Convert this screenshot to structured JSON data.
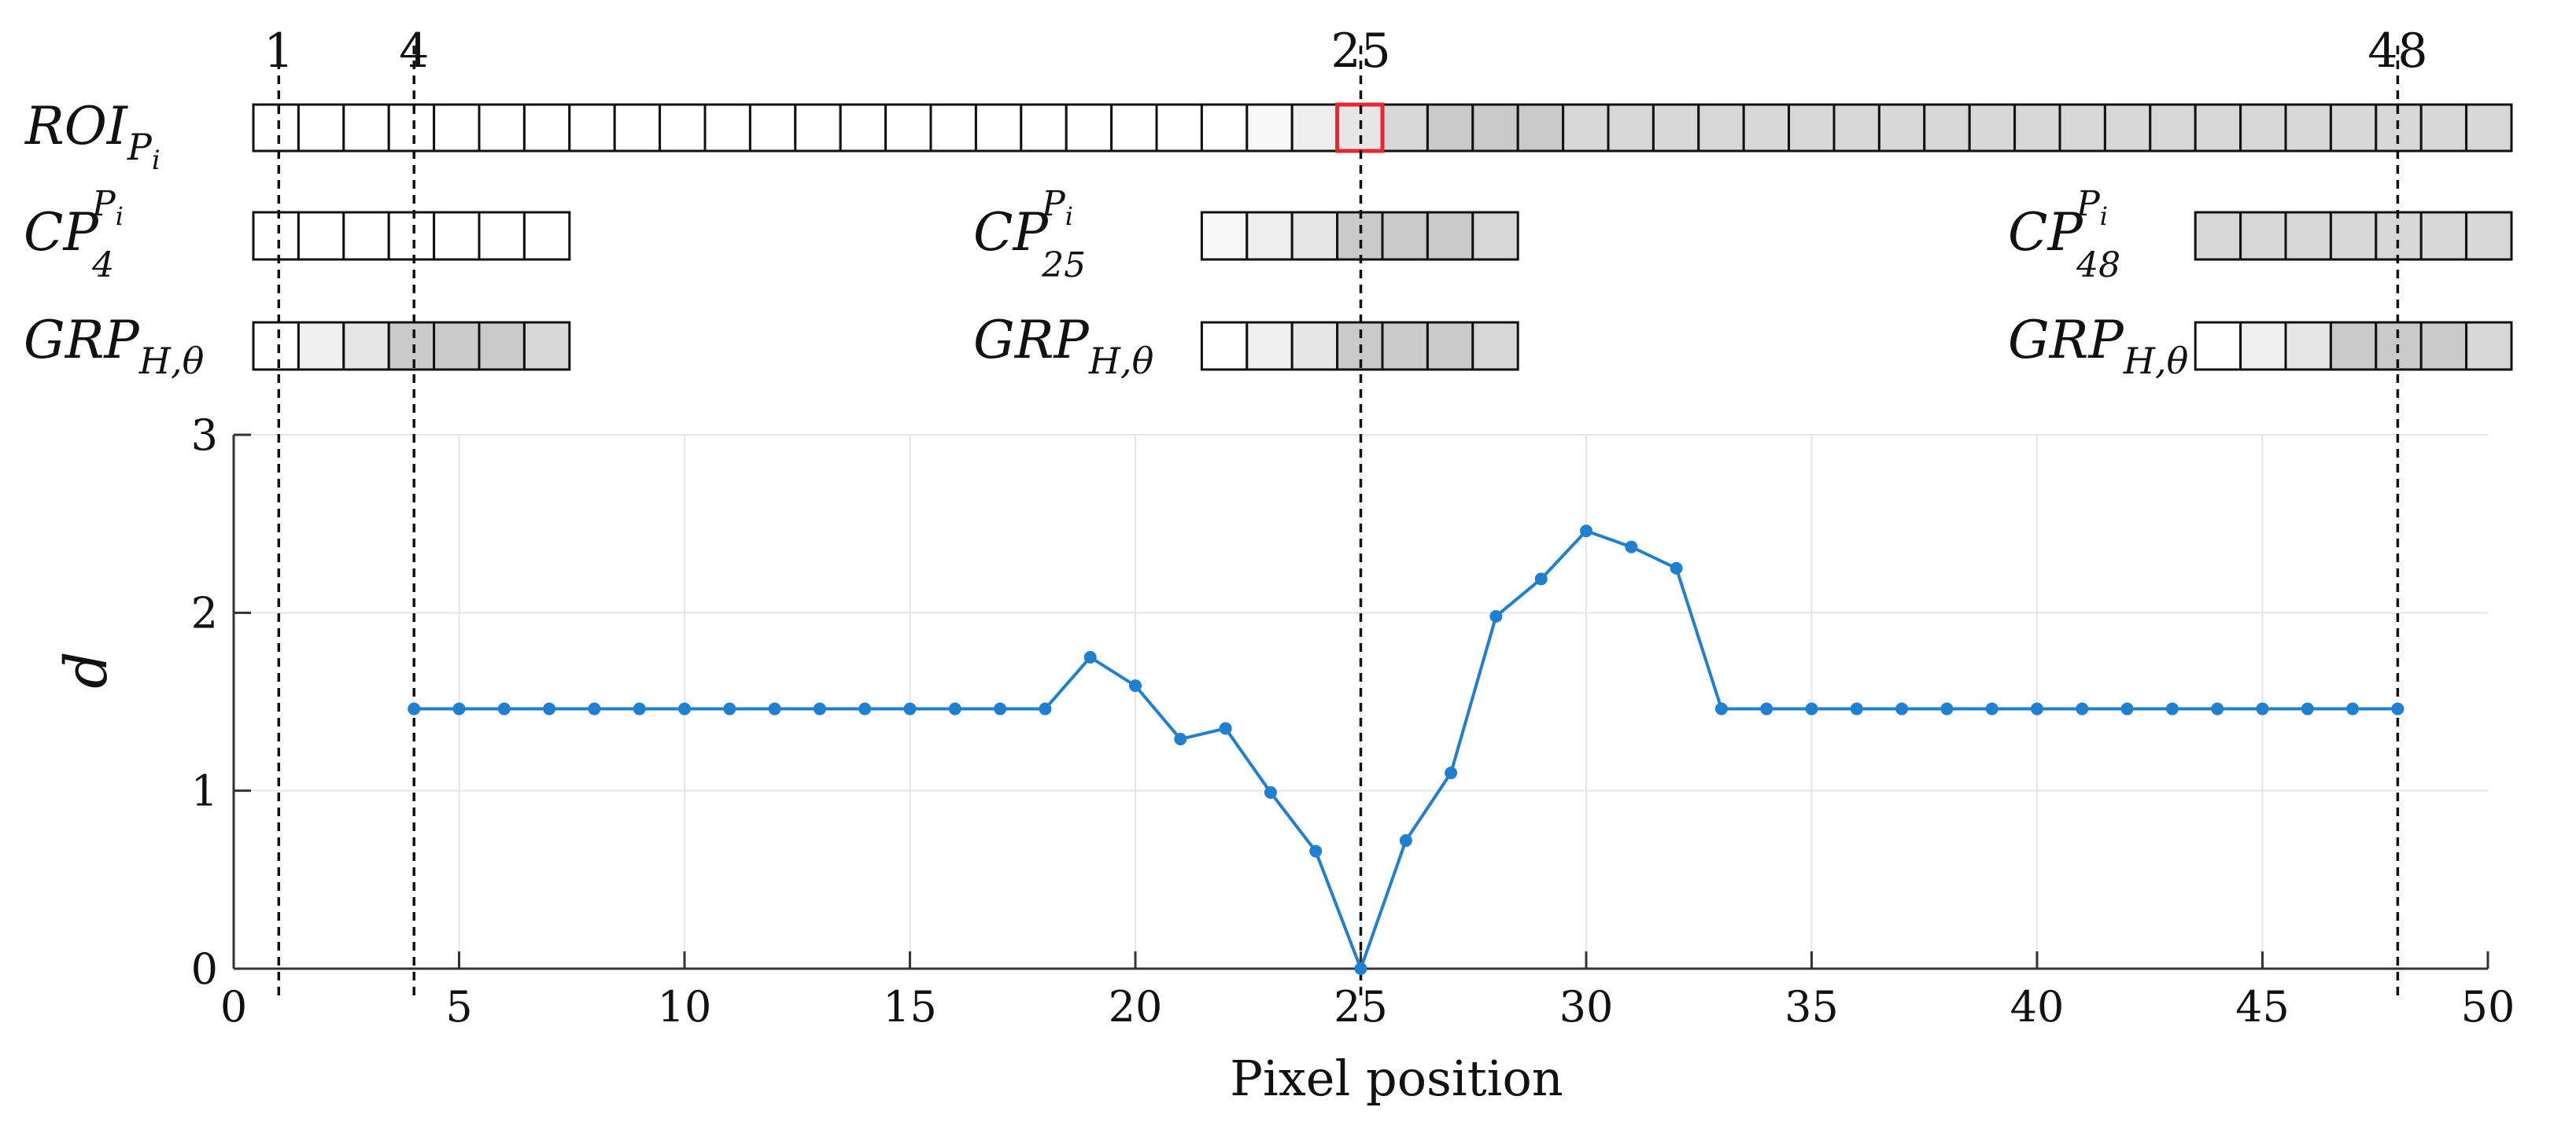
{
  "chart_data": {
    "type": "line",
    "x": [
      4,
      5,
      6,
      7,
      8,
      9,
      10,
      11,
      12,
      13,
      14,
      15,
      16,
      17,
      18,
      19,
      20,
      21,
      22,
      23,
      24,
      25,
      26,
      27,
      28,
      29,
      30,
      31,
      32,
      33,
      34,
      35,
      36,
      37,
      38,
      39,
      40,
      41,
      42,
      43,
      44,
      45,
      46,
      47,
      48
    ],
    "series": [
      {
        "values": [
          1.46,
          1.46,
          1.46,
          1.46,
          1.46,
          1.46,
          1.46,
          1.46,
          1.46,
          1.46,
          1.46,
          1.46,
          1.46,
          1.46,
          1.46,
          1.75,
          1.59,
          1.29,
          1.35,
          0.99,
          0.66,
          0.0,
          0.72,
          1.1,
          1.98,
          2.19,
          2.46,
          2.37,
          2.25,
          1.46,
          1.46,
          1.46,
          1.46,
          1.46,
          1.46,
          1.46,
          1.46,
          1.46,
          1.46,
          1.46,
          1.46,
          1.46,
          1.46,
          1.46,
          1.46
        ],
        "color": "#1f7fd0"
      }
    ],
    "xlabel": "Pixel position",
    "ylabel": "d",
    "xlim": [
      0,
      50
    ],
    "ylim": [
      0,
      3
    ],
    "xticks": [
      "0",
      "5",
      "10",
      "15",
      "20",
      "25",
      "30",
      "35",
      "40",
      "45",
      "50"
    ],
    "yticks": [
      "0",
      "1",
      "2",
      "3"
    ],
    "grid": true,
    "markers": [
      {
        "x": 1,
        "label": "1"
      },
      {
        "x": 4,
        "label": "4"
      },
      {
        "x": 25,
        "label": "25"
      },
      {
        "x": 48,
        "label": "48"
      }
    ]
  },
  "strips": {
    "roi": {
      "label_main": "ROI",
      "label_sub": "P",
      "label_subsub": "i",
      "count": 50,
      "shades": [
        "#ffffff",
        "#ffffff",
        "#ffffff",
        "#ffffff",
        "#ffffff",
        "#ffffff",
        "#ffffff",
        "#ffffff",
        "#ffffff",
        "#ffffff",
        "#ffffff",
        "#ffffff",
        "#ffffff",
        "#ffffff",
        "#ffffff",
        "#ffffff",
        "#ffffff",
        "#ffffff",
        "#ffffff",
        "#ffffff",
        "#ffffff",
        "#ffffff",
        "#f8f8f8",
        "#eeeeee",
        "#e6e6e6",
        "#d7d7d7",
        "#c9c9c9",
        "#c9c9c9",
        "#c9c9c9",
        "#d7d7d7",
        "#d7d7d7",
        "#d7d7d7",
        "#d7d7d7",
        "#d7d7d7",
        "#d7d7d7",
        "#d7d7d7",
        "#d7d7d7",
        "#d7d7d7",
        "#d7d7d7",
        "#d7d7d7",
        "#d7d7d7",
        "#d7d7d7",
        "#d7d7d7",
        "#d7d7d7",
        "#d7d7d7",
        "#d7d7d7",
        "#d7d7d7",
        "#d7d7d7",
        "#d7d7d7",
        "#d7d7d7"
      ],
      "highlight_index": 25,
      "highlight_color": "#e8262b"
    },
    "cp4": {
      "label_main": "CP",
      "label_sub": "4",
      "label_sup": "P",
      "label_supsub": "i",
      "shades": [
        "#ffffff",
        "#ffffff",
        "#ffffff",
        "#ffffff",
        "#ffffff",
        "#ffffff",
        "#ffffff"
      ]
    },
    "grp4": {
      "label_main": "GRP",
      "label_sub": "H,θ",
      "shades": [
        "#ffffff",
        "#efefef",
        "#e6e6e6",
        "#cacaca",
        "#cacaca",
        "#cacaca",
        "#d7d7d7"
      ]
    },
    "cp25": {
      "label_main": "CP",
      "label_sub": "25",
      "label_sup": "P",
      "label_supsub": "i",
      "shades": [
        "#f8f8f8",
        "#eeeeee",
        "#e6e6e6",
        "#cacaca",
        "#c9c9c9",
        "#c9c9c9",
        "#d7d7d7"
      ]
    },
    "grp25": {
      "label_main": "GRP",
      "label_sub": "H,θ",
      "shades": [
        "#ffffff",
        "#efefef",
        "#e6e6e6",
        "#cacaca",
        "#cacaca",
        "#cacaca",
        "#d7d7d7"
      ]
    },
    "cp48": {
      "label_main": "CP",
      "label_sub": "48",
      "label_sup": "P",
      "label_supsub": "i",
      "shades": [
        "#d7d7d7",
        "#d7d7d7",
        "#d7d7d7",
        "#d7d7d7",
        "#d7d7d7",
        "#d7d7d7",
        "#d7d7d7"
      ]
    },
    "grp48": {
      "label_main": "GRP",
      "label_sub": "H,θ",
      "shades": [
        "#ffffff",
        "#efefef",
        "#e6e6e6",
        "#cacaca",
        "#cacaca",
        "#cacaca",
        "#d7d7d7"
      ]
    }
  }
}
